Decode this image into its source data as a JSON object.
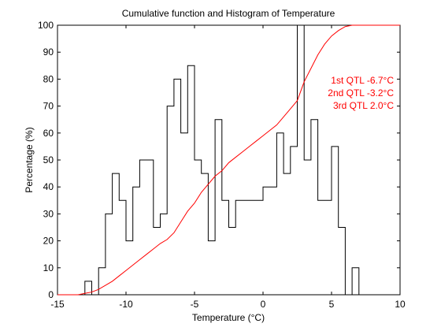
{
  "chart_data": {
    "type": "line",
    "title": "Cumulative function and Histogram of Temperature",
    "xlabel": "Temperature (°C)",
    "ylabel": "Percentage (%)",
    "xlim": [
      -15,
      10
    ],
    "ylim": [
      0,
      100
    ],
    "xticks": [
      -15,
      -10,
      -5,
      0,
      5,
      10
    ],
    "yticks": [
      0,
      10,
      20,
      30,
      40,
      50,
      60,
      70,
      80,
      90,
      100
    ],
    "grid": false,
    "annotations": [
      "1st QTL -6.7°C",
      "2nd QTL -3.2°C",
      "3rd QTL  2.0°C"
    ],
    "annotation_color": "#ff0000",
    "series": [
      {
        "kind": "histogram-stairs",
        "color": "#000000",
        "bin_width": 0.5,
        "x_edges": [
          -15,
          -13.0,
          -12.5,
          -12.0,
          -11.5,
          -11.0,
          -10.5,
          -10.0,
          -9.5,
          -9.0,
          -8.5,
          -8.0,
          -7.5,
          -7.0,
          -6.5,
          -6.0,
          -5.5,
          -5.0,
          -4.5,
          -4.0,
          -3.5,
          -3.0,
          -2.5,
          -2.0,
          -1.5,
          -1.0,
          -0.5,
          0.0,
          0.5,
          1.0,
          1.5,
          2.0,
          2.5,
          3.0,
          3.5,
          4.0,
          4.5,
          5.0,
          5.5,
          6.0,
          6.5,
          7.0,
          7.5,
          10
        ],
        "values": [
          0,
          5,
          0,
          10,
          30,
          45,
          35,
          20,
          40,
          50,
          50,
          25,
          30,
          70,
          80,
          60,
          85,
          50,
          45,
          20,
          65,
          35,
          25,
          35,
          35,
          35,
          35,
          40,
          40,
          60,
          45,
          55,
          100,
          50,
          65,
          35,
          35,
          55,
          25,
          0,
          10,
          0,
          0
        ]
      },
      {
        "kind": "cumulative",
        "color": "#ff0000",
        "x": [
          -15,
          -13.5,
          -13,
          -12.5,
          -12,
          -11.5,
          -11,
          -10.5,
          -10,
          -9.5,
          -9,
          -8.5,
          -8,
          -7.5,
          -7,
          -6.5,
          -6,
          -5.5,
          -5,
          -4.5,
          -4,
          -3.5,
          -3,
          -2.5,
          -2,
          -1.5,
          -1,
          -0.5,
          0,
          0.5,
          1,
          1.5,
          2,
          2.5,
          3,
          3.5,
          4,
          4.5,
          5,
          5.5,
          6,
          6.5,
          7,
          10
        ],
        "values": [
          0,
          0,
          0.5,
          1,
          2,
          3.5,
          5,
          7,
          9,
          11,
          13,
          15,
          17,
          19,
          20.5,
          23,
          27,
          31,
          34,
          38,
          41,
          44,
          46,
          49,
          51,
          53,
          55,
          57,
          59,
          61,
          63,
          66,
          69,
          72,
          79,
          84,
          89,
          93,
          96,
          98,
          99.5,
          100,
          100,
          100
        ]
      }
    ]
  }
}
